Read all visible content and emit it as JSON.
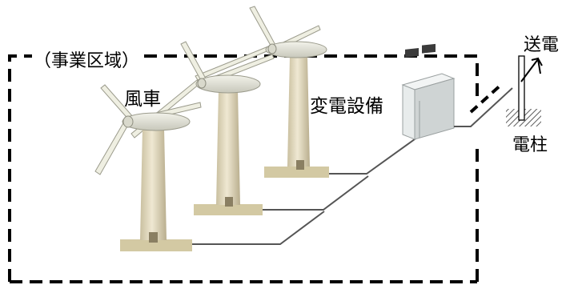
{
  "labels": {
    "project_area": "（事業区域）",
    "wind_turbine": "風車",
    "substation": "変電設備",
    "transmission": "送電",
    "utility_pole": "電柱"
  },
  "colors": {
    "tower": "#e8e0c8",
    "tower_shadow": "#b8ad8e",
    "base": "#d3c9a3",
    "blade": "#efefe2",
    "nacelle": "#dcdcd0",
    "cable": "#555555",
    "boundary": "#000000",
    "cabinet": "#e4e7e7"
  },
  "icons": [
    "wind-turbine-icon",
    "substation-icon",
    "utility-pole-icon",
    "arrow-icon"
  ]
}
